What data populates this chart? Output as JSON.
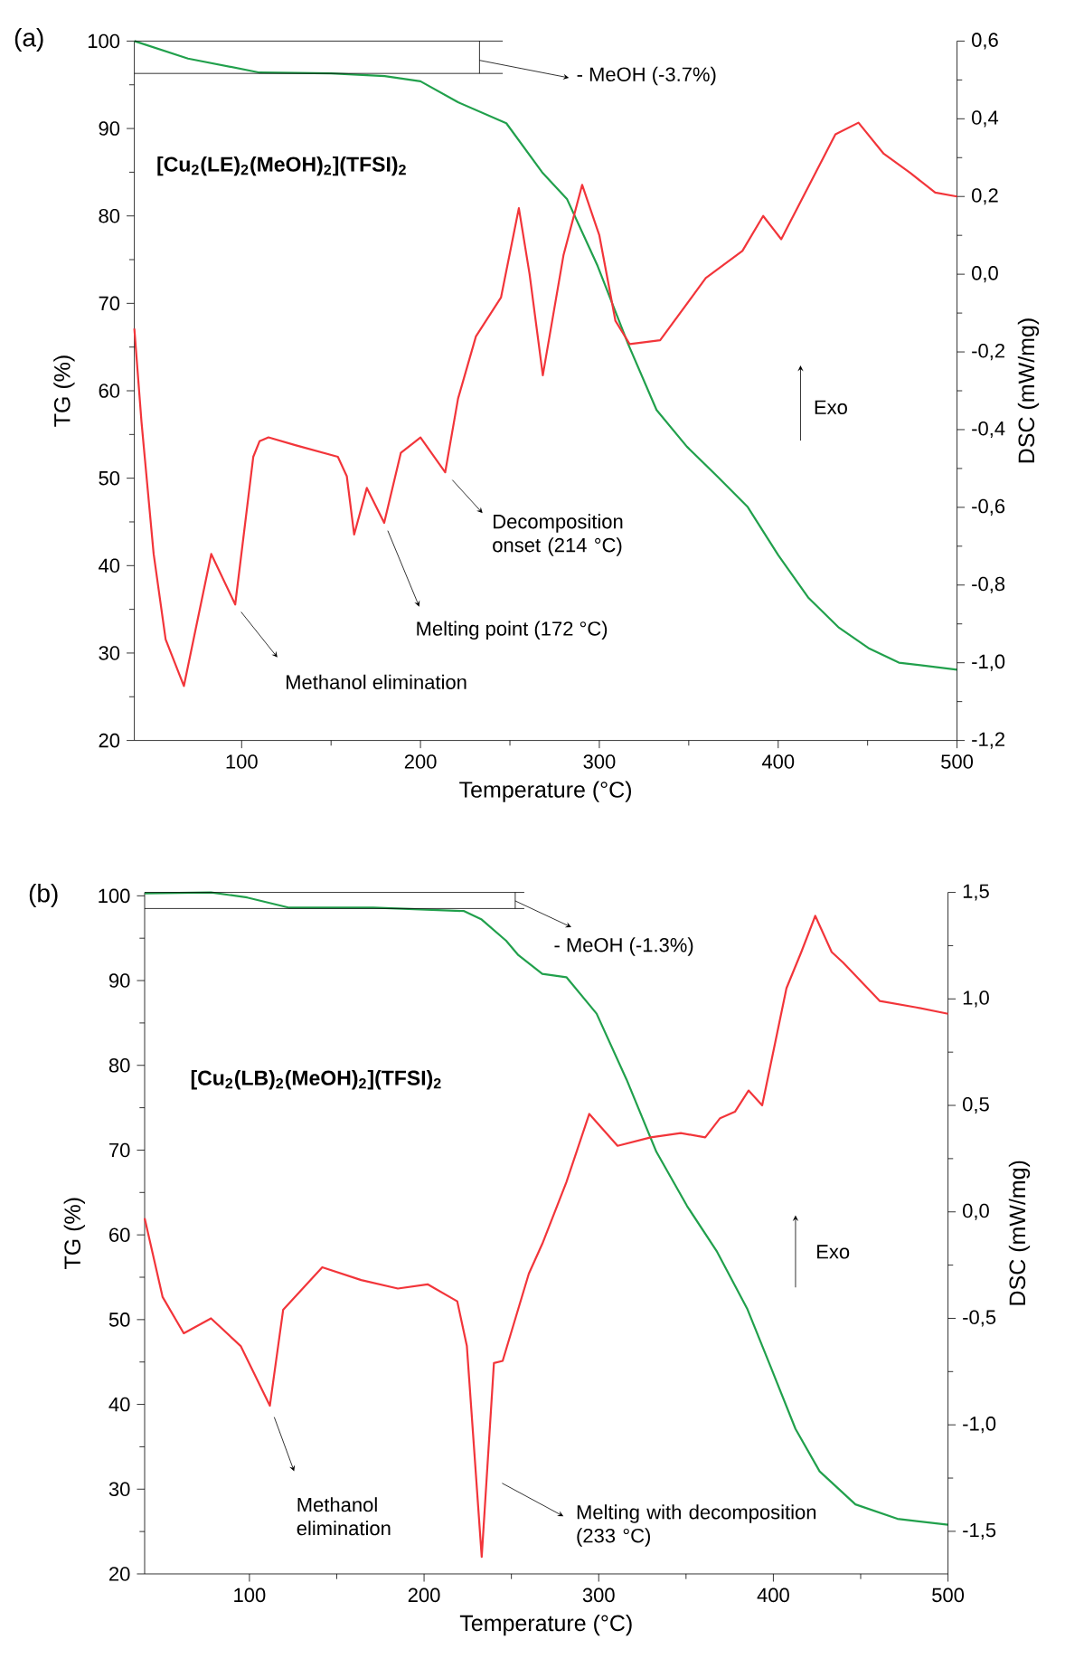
{
  "chart_data": [
    {
      "type": "line",
      "title": "(a)",
      "subtitle": "[Cu$_{2}$(LE)$_{2}$(MeOH)$_{2}$](TFSI)$_{2}$",
      "xlabel": "Temperature (°C)",
      "ylabel": "TG (%)",
      "y2label": "DSC (mW/mg)",
      "xlim": [
        40,
        500
      ],
      "xticks": [
        100,
        200,
        300,
        400,
        500
      ],
      "ylim": [
        20,
        100
      ],
      "yticks": [
        20,
        30,
        40,
        50,
        60,
        70,
        80,
        90,
        100
      ],
      "y2lim": [
        -1.2,
        0.6
      ],
      "y2ticks": [
        {
          "value": -1.2,
          "label": "-1,2"
        },
        {
          "value": -1.0,
          "label": "-1,0"
        },
        {
          "value": -0.8,
          "label": "-0,8"
        },
        {
          "value": -0.6,
          "label": "-0,6"
        },
        {
          "value": -0.4,
          "label": "-0,4"
        },
        {
          "value": -0.2,
          "label": "-0,2"
        },
        {
          "value": 0.0,
          "label": "0,0"
        },
        {
          "value": 0.2,
          "label": "0,2"
        },
        {
          "value": 0.4,
          "label": "0,4"
        },
        {
          "value": 0.6,
          "label": "0,6"
        }
      ],
      "marker": "none",
      "line_style": "solid",
      "series": [
        {
          "color": "#21a04c",
          "x": [
            40,
            70,
            110,
            150,
            180,
            200,
            221,
            248,
            268,
            282,
            299,
            316,
            332,
            349,
            366,
            383,
            400,
            417,
            434,
            451,
            467.5,
            500
          ],
          "values": [
            100,
            98,
            96.4,
            96.3,
            96,
            95.4,
            93,
            90.6,
            85,
            81.9,
            74.3,
            65.4,
            57.8,
            53.6,
            50.2,
            46.7,
            41.2,
            36.3,
            32.9,
            30.5,
            28.9,
            28.1
          ]
        },
        {
          "color": "#f2353a",
          "axis": "y2",
          "x": [
            40,
            44,
            50.8,
            57.5,
            67.7,
            74,
            83,
            96.4,
            106.5,
            110,
            115,
            130,
            153.8,
            158.8,
            162.9,
            170,
            179.7,
            189,
            200,
            213.8,
            221,
            231,
            245,
            255,
            261,
            268.4,
            280,
            290.4,
            300,
            309,
            317,
            334,
            359.5,
            380,
            391.6,
            401.7,
            432,
            444.9,
            459,
            474,
            487.8,
            500
          ],
          "values": [
            -0.14,
            -0.38,
            -0.72,
            -0.94,
            -1.06,
            -0.92,
            -0.72,
            -0.85,
            -0.47,
            -0.43,
            -0.42,
            -0.44,
            -0.47,
            -0.52,
            -0.67,
            -0.55,
            -0.64,
            -0.46,
            -0.42,
            -0.51,
            -0.32,
            -0.16,
            -0.06,
            0.17,
            0.0,
            -0.26,
            0.05,
            0.23,
            0.1,
            -0.12,
            -0.18,
            -0.17,
            -0.01,
            0.06,
            0.15,
            0.09,
            0.36,
            0.39,
            0.31,
            0.26,
            0.21,
            0.2
          ]
        }
      ],
      "ref_lines": [
        {
          "axis": "y",
          "value": 100
        },
        {
          "axis": "y",
          "value": 96.3
        }
      ],
      "annotations": [
        "- MeOH (-3.7%)",
        "Methanol elimination",
        "Melting point (172 °C)",
        "Decomposition onset (214 °C)",
        "Exo"
      ]
    },
    {
      "type": "line",
      "title": "(b)",
      "subtitle": "[Cu$_{2}$(LB)$_{2}$(MeOH)$_{2}$](TFSI)$_{2}$",
      "xlabel": "Temperature (°C)",
      "ylabel": "TG (%)",
      "y2label": "DSC (mW/mg)",
      "xlim": [
        40,
        500
      ],
      "xticks": [
        100,
        200,
        300,
        400,
        500
      ],
      "ylim": [
        20,
        100.4
      ],
      "yticks": [
        20,
        30,
        40,
        50,
        60,
        70,
        80,
        90,
        100
      ],
      "y2lim": [
        -1.7,
        1.5
      ],
      "y2ticks": [
        {
          "value": -1.5,
          "label": "-1,5"
        },
        {
          "value": -1.0,
          "label": "-1,0"
        },
        {
          "value": -0.5,
          "label": "-0,5"
        },
        {
          "value": 0.0,
          "label": "0,0"
        },
        {
          "value": 0.5,
          "label": "0,5"
        },
        {
          "value": 1.0,
          "label": "1,0"
        },
        {
          "value": 1.5,
          "label": "1,5"
        }
      ],
      "marker": "none",
      "line_style": "solid",
      "series": [
        {
          "color": "#21a04c",
          "x": [
            40,
            78,
            98.7,
            122.8,
            171,
            222.9,
            233,
            247,
            254,
            267.7,
            281.5,
            298.8,
            316,
            333,
            350.6,
            367.8,
            385,
            398.9,
            412.7,
            426.5,
            447,
            471,
            500
          ],
          "values": [
            100.3,
            100.4,
            99.8,
            98.6,
            98.6,
            98.2,
            97.2,
            94.7,
            93,
            90.8,
            90.4,
            86.1,
            78.3,
            69.8,
            63.4,
            58,
            51.3,
            44.2,
            37.1,
            32.1,
            28.2,
            26.5,
            25.8
          ]
        },
        {
          "color": "#f2353a",
          "axis": "y2",
          "x": [
            40,
            50.3,
            62.4,
            78,
            95,
            111.7,
            119.3,
            141.7,
            164,
            185,
            202,
            219,
            224.5,
            233,
            240,
            245,
            260,
            267.7,
            281.5,
            294.6,
            310.8,
            329.8,
            347,
            361,
            369.5,
            378,
            385.8,
            393.6,
            407.5,
            416,
            424,
            433.4,
            440,
            461,
            482,
            500
          ],
          "values": [
            -0.03,
            -0.4,
            -0.57,
            -0.5,
            -0.63,
            -0.91,
            -0.46,
            -0.26,
            -0.32,
            -0.36,
            -0.34,
            -0.42,
            -0.63,
            -1.62,
            -0.71,
            -0.7,
            -0.29,
            -0.15,
            0.14,
            0.46,
            0.31,
            0.35,
            0.37,
            0.35,
            0.44,
            0.47,
            0.57,
            0.5,
            1.05,
            1.22,
            1.39,
            1.22,
            1.17,
            0.99,
            0.96,
            0.93
          ]
        }
      ],
      "ref_lines": [
        {
          "axis": "y",
          "value": 100.4
        },
        {
          "axis": "y",
          "value": 98.5
        }
      ],
      "annotations": [
        "- MeOH (-1.3%)",
        "Methanol elimination",
        "Melting with decomposition (233 °C)",
        "Exo"
      ]
    }
  ]
}
